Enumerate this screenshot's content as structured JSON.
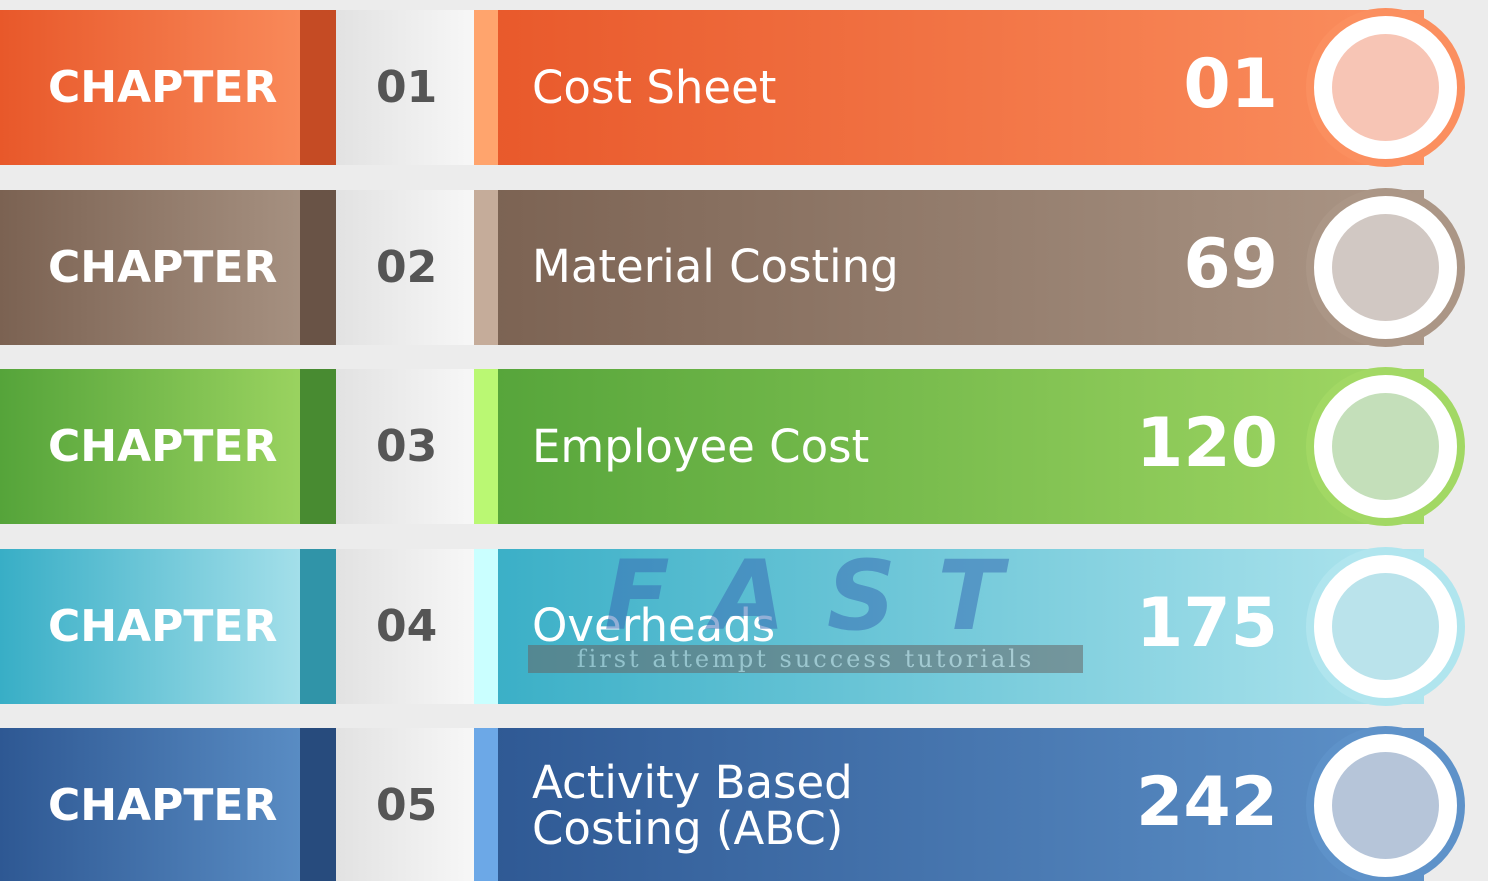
{
  "rows": [
    {
      "label": "CHAPTER",
      "number": "01",
      "title": "Cost Sheet",
      "page": "01",
      "color": "#e8582a",
      "color_light": "#fb8f5f"
    },
    {
      "label": "CHAPTER",
      "number": "02",
      "title": "Material Costing",
      "page": "69",
      "color": "#7b6252",
      "color_light": "#ab9686"
    },
    {
      "label": "CHAPTER",
      "number": "03",
      "title": "Employee Cost",
      "page": "120",
      "color": "#55a43a",
      "color_light": "#a2d864"
    },
    {
      "label": "CHAPTER",
      "number": "04",
      "title": "Overheads",
      "page": "175",
      "color": "#38aec6",
      "color_light": "#b0e5ee"
    },
    {
      "label": "CHAPTER",
      "number": "05",
      "title": "Activity Based Costing (ABC)",
      "page": "242",
      "color": "#2e5893",
      "color_light": "#5e92c9"
    }
  ],
  "watermark": {
    "logo": "F A S T",
    "tagline": "first attempt success tutorials"
  }
}
